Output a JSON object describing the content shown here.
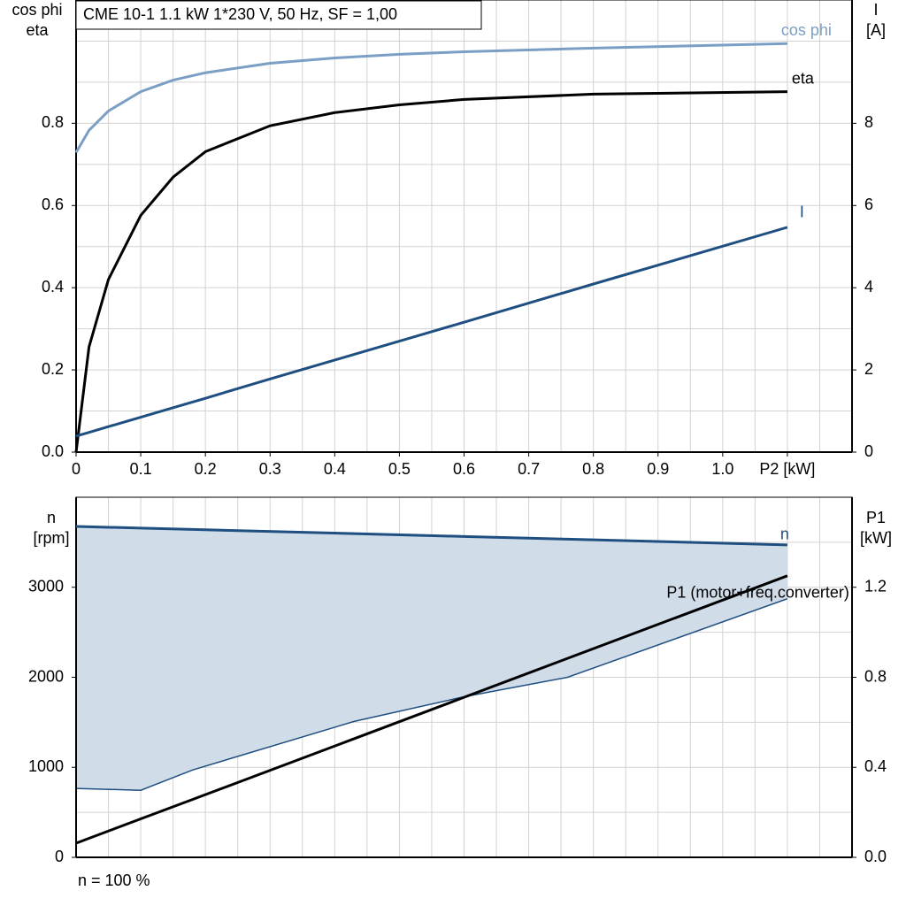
{
  "chart_data": [
    {
      "type": "line",
      "title": "CME 10-1   1.1 kW   1*230 V, 50 Hz, SF = 1,00",
      "ylabel": [
        "cos phi",
        "eta"
      ],
      "y2label": [
        "I",
        "[A]"
      ],
      "x": [
        0,
        0.02,
        0.05,
        0.1,
        0.15,
        0.2,
        0.3,
        0.4,
        0.5,
        0.6,
        0.8,
        1.1
      ],
      "series": [
        {
          "name": "cos phi",
          "color": "#7b9fc4",
          "axis": "y",
          "values": [
            0.729,
            0.783,
            0.83,
            0.877,
            0.905,
            0.923,
            0.946,
            0.959,
            0.968,
            0.974,
            0.983,
            0.994
          ]
        },
        {
          "name": "eta",
          "color": "#000000",
          "axis": "y",
          "values": [
            0,
            0.256,
            0.42,
            0.576,
            0.669,
            0.731,
            0.794,
            0.826,
            0.845,
            0.858,
            0.871,
            0.877
          ]
        },
        {
          "name": "I",
          "color": "#1f4e80",
          "axis": "y2",
          "values": [
            0.39,
            0.48,
            0.62,
            0.85,
            1.08,
            1.31,
            1.78,
            2.24,
            2.7,
            3.16,
            4.09,
            5.47
          ]
        }
      ],
      "xlim": [
        0,
        1.2
      ],
      "xticks": [
        0,
        0.1,
        0.2,
        0.3,
        0.4,
        0.5,
        0.6,
        0.7,
        0.8,
        0.9,
        {
          "value": 1.0,
          "label": "1.0"
        },
        {
          "value": 1.1,
          "label": "P2 [kW]"
        }
      ],
      "xgrid": [
        0.05,
        0.1,
        0.15,
        0.2,
        0.25,
        0.3,
        0.35,
        0.4,
        0.45,
        0.5,
        0.55,
        0.6,
        0.65,
        0.7,
        0.75,
        0.8,
        0.85,
        0.9,
        0.95,
        1.0,
        1.05,
        1.1,
        1.15
      ],
      "ylim": [
        0,
        1.1
      ],
      "yticks": [
        {
          "value": 0,
          "label": "0.0"
        },
        0.2,
        0.4,
        0.6,
        0.8
      ],
      "ygrid": [
        0.1,
        0.2,
        0.3,
        0.4,
        0.5,
        0.6,
        0.7,
        0.8,
        0.9,
        1.0
      ],
      "y2lim": [
        0,
        11
      ],
      "y2ticks": [
        0,
        2,
        4,
        6,
        8
      ],
      "grid": true
    },
    {
      "type": "line",
      "ylabel": [
        "n",
        "[rpm]"
      ],
      "y2label": [
        "P1",
        "[kW]"
      ],
      "note": "n = 100 %",
      "x": [
        0,
        0.1,
        0.18,
        0.43,
        0.6,
        0.76,
        1.1
      ],
      "series": [
        {
          "name": "n",
          "color": "#1f4e80",
          "axis": "y",
          "values": [
            3676,
            3657,
            3642,
            3596,
            3564,
            3534,
            3471
          ],
          "band_lower": [
            765,
            745,
            970,
            1510,
            1784,
            2000,
            2873
          ],
          "band_color": "#d0dce8"
        },
        {
          "name": "P1 (motor+freq.converter)",
          "color": "#000000",
          "axis": "y2",
          "values": [
            0.063,
            0.171,
            0.257,
            0.527,
            0.711,
            0.884,
            1.251
          ]
        }
      ],
      "xlim": [
        0,
        1.2
      ],
      "xgrid": [
        0.05,
        0.1,
        0.15,
        0.2,
        0.25,
        0.3,
        0.35,
        0.4,
        0.45,
        0.5,
        0.55,
        0.6,
        0.65,
        0.7,
        0.75,
        0.8,
        0.85,
        0.9,
        0.95,
        1.0,
        1.05,
        1.1,
        1.15
      ],
      "ylim": [
        0,
        4000
      ],
      "yticks": [
        0,
        1000,
        2000,
        3000
      ],
      "ygrid": [
        500,
        1000,
        1500,
        2000,
        2500,
        3000,
        3500
      ],
      "y2lim": [
        0,
        1.6
      ],
      "y2ticks": [
        {
          "value": 0,
          "label": "0.0"
        },
        0.4,
        0.8,
        1.2
      ],
      "grid": true
    }
  ]
}
